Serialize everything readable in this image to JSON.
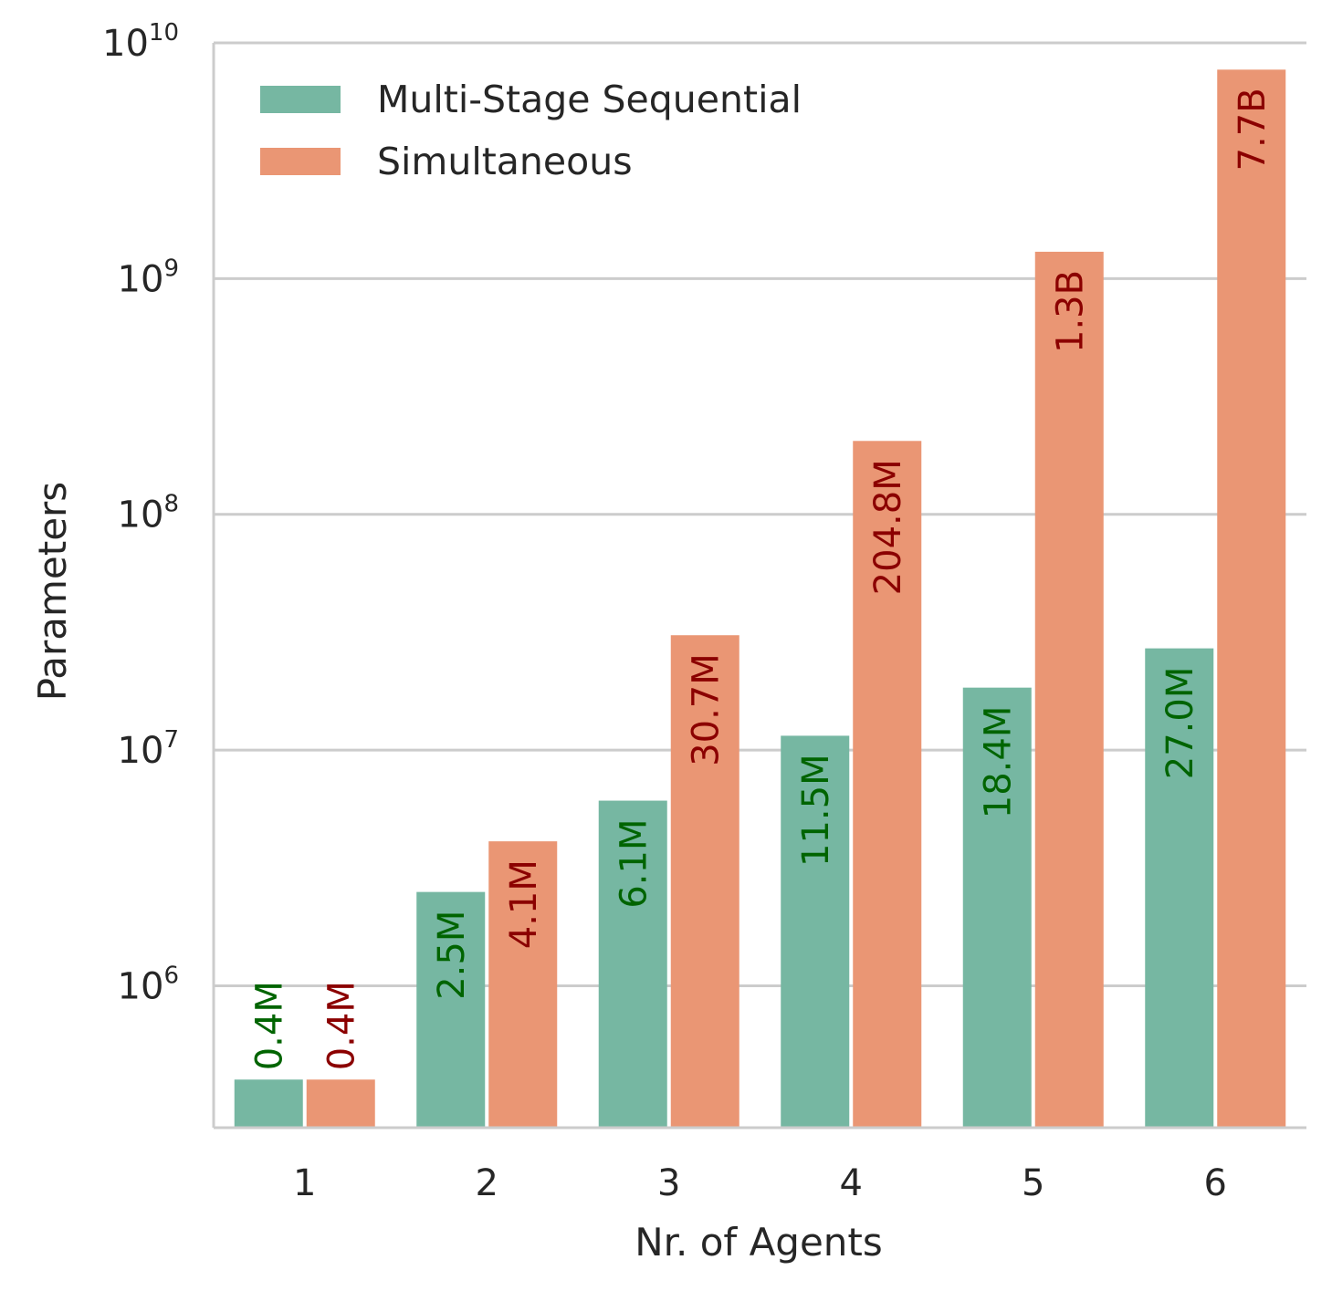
{
  "chart_data": {
    "type": "bar",
    "yscale": "log",
    "ylim": [
      250000,
      10000000000
    ],
    "yticks": [
      {
        "base": "10",
        "exp": "6"
      },
      {
        "base": "10",
        "exp": "7"
      },
      {
        "base": "10",
        "exp": "8"
      },
      {
        "base": "10",
        "exp": "9"
      },
      {
        "base": "10",
        "exp": "10"
      }
    ],
    "xlabel": "Nr. of Agents",
    "ylabel": "Parameters",
    "categories": [
      "1",
      "2",
      "3",
      "4",
      "5",
      "6"
    ],
    "grid": "horizontal",
    "legend_position": "top-left",
    "series": [
      {
        "name": "Multi-Stage Sequential",
        "color": "#76b7a2",
        "label_color": "#006400",
        "values": [
          400000,
          2500000,
          6100000,
          11500000,
          18400000,
          27000000
        ],
        "labels": [
          "0.4M",
          "2.5M",
          "6.1M",
          "11.5M",
          "18.4M",
          "27.0M"
        ]
      },
      {
        "name": "Simultaneous",
        "color": "#ea9674",
        "label_color": "#8b0000",
        "values": [
          400000,
          4100000,
          30700000,
          204800000,
          1300000000,
          7700000000
        ],
        "labels": [
          "0.4M",
          "4.1M",
          "30.7M",
          "204.8M",
          "1.3B",
          "7.7B"
        ]
      }
    ]
  }
}
